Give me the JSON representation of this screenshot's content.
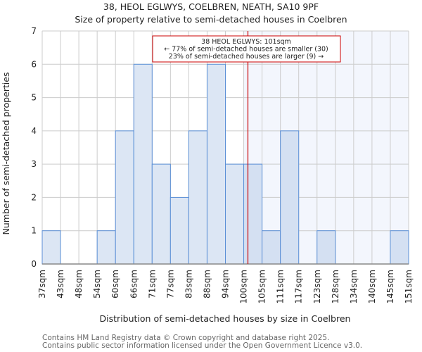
{
  "chart_data": {
    "type": "bar",
    "title": "38, HEOL EGLWYS, COELBREN, NEATH, SA10 9PF",
    "subtitle": "Size of property relative to semi-detached houses in Coelbren",
    "xlabel": "Distribution of semi-detached houses by size in Coelbren",
    "ylabel": "Number of semi-detached properties",
    "bin_edges_labels": [
      "37sqm",
      "43sqm",
      "48sqm",
      "54sqm",
      "60sqm",
      "66sqm",
      "71sqm",
      "77sqm",
      "83sqm",
      "88sqm",
      "94sqm",
      "100sqm",
      "105sqm",
      "111sqm",
      "117sqm",
      "123sqm",
      "128sqm",
      "134sqm",
      "140sqm",
      "145sqm",
      "151sqm"
    ],
    "values": [
      1,
      0,
      0,
      1,
      4,
      6,
      3,
      2,
      4,
      6,
      3,
      3,
      1,
      4,
      0,
      1,
      0,
      0,
      0,
      1
    ],
    "ylim": [
      0,
      7
    ],
    "yticks": [
      0,
      1,
      2,
      3,
      4,
      5,
      6,
      7
    ],
    "xrange": [
      37,
      151
    ],
    "grid": true,
    "marker": {
      "value": 101,
      "highlight_from_bin": 11,
      "color": "#cc0000",
      "annotation": [
        "38 HEOL EGLWYS: 101sqm",
        "← 77% of semi-detached houses are smaller (30)",
        "23% of semi-detached houses are larger (9) →"
      ]
    },
    "colors": {
      "bar": "#dce6f4",
      "bar_highlight": "#d4e0f2",
      "bar_edge": "#5b8fd6",
      "highlight_bg": "#f3f6fd",
      "grid": "#cccccc"
    }
  },
  "footer": [
    "Contains HM Land Registry data © Crown copyright and database right 2025.",
    "Contains public sector information licensed under the Open Government Licence v3.0."
  ]
}
